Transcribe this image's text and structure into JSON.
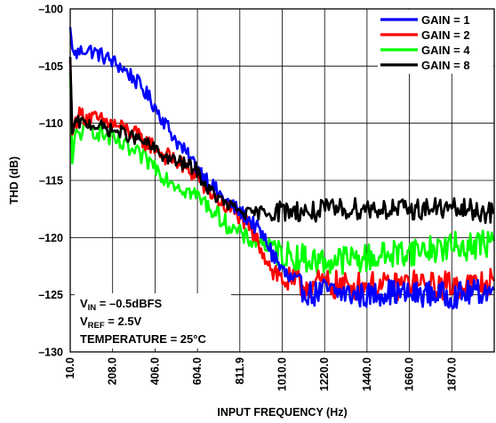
{
  "chart_data": {
    "type": "line",
    "title": "",
    "xlabel": "INPUT FREQUENCY (Hz)",
    "ylabel": "THD (dB)",
    "xlim": [
      10.0,
      2000
    ],
    "ylim": [
      -130,
      -100
    ],
    "x_ticks": [
      "10.0",
      "208.0",
      "406.0",
      "604.0",
      "811.9",
      "1010.0",
      "1220.0",
      "1440.0",
      "1660.0",
      "1870.0"
    ],
    "y_ticks": [
      "–100",
      "–105",
      "–110",
      "–115",
      "–120",
      "–125",
      "–130"
    ],
    "grid": true,
    "legend_position": "top-right",
    "annotations": [
      "V",
      "IN",
      " = –0.5dBFS",
      "V",
      "REF",
      " = 2.5V",
      "TEMPERATURE = 25°C"
    ],
    "x": [
      10,
      20,
      30,
      40,
      60,
      80,
      100,
      150,
      200,
      250,
      300,
      350,
      400,
      450,
      500,
      550,
      600,
      650,
      700,
      750,
      800,
      850,
      900,
      950,
      1000,
      1050,
      1100,
      1150,
      1200,
      1300,
      1400,
      1500,
      1600,
      1700,
      1800,
      1900,
      2000
    ],
    "series": [
      {
        "name": "GAIN = 1",
        "color": "#0000ff",
        "values": [
          -101.6,
          -103.5,
          -104.0,
          -103.9,
          -103.7,
          -103.5,
          -103.6,
          -104.0,
          -104.5,
          -105.1,
          -105.9,
          -107.0,
          -108.3,
          -109.8,
          -111.3,
          -112.6,
          -113.7,
          -114.8,
          -116.0,
          -116.9,
          -117.7,
          -118.4,
          -119.5,
          -121.0,
          -122.8,
          -123.9,
          -124.5,
          -125.0,
          -124.6,
          -124.9,
          -125.1,
          -124.7,
          -125.0,
          -124.9,
          -125.1,
          -124.8,
          -124.6
        ]
      },
      {
        "name": "GAIN = 2",
        "color": "#ff0000",
        "values": [
          -104.5,
          -111.0,
          -110.2,
          -109.6,
          -109.2,
          -109.4,
          -109.5,
          -109.8,
          -110.0,
          -110.4,
          -110.8,
          -111.5,
          -112.0,
          -112.8,
          -113.2,
          -114.0,
          -114.5,
          -115.8,
          -116.6,
          -117.5,
          -118.0,
          -119.2,
          -120.7,
          -122.5,
          -123.6,
          -124.0,
          -124.2,
          -124.1,
          -124.0,
          -124.3,
          -124.2,
          -124.4,
          -124.0,
          -124.3,
          -124.1,
          -124.2,
          -123.8
        ]
      },
      {
        "name": "GAIN = 4",
        "color": "#00ff00",
        "values": [
          -105.5,
          -113.5,
          -111.4,
          -111.0,
          -110.8,
          -110.5,
          -110.5,
          -110.8,
          -111.4,
          -111.9,
          -112.5,
          -113.0,
          -113.6,
          -114.6,
          -115.2,
          -115.8,
          -116.3,
          -117.1,
          -118.0,
          -118.9,
          -119.6,
          -120.2,
          -120.3,
          -121.0,
          -121.4,
          -121.6,
          -121.8,
          -122.0,
          -122.1,
          -121.9,
          -121.8,
          -121.5,
          -121.2,
          -121.0,
          -120.8,
          -120.7,
          -120.3
        ]
      },
      {
        "name": "GAIN = 8",
        "color": "#000000",
        "values": [
          -104.2,
          -110.9,
          -110.1,
          -110.0,
          -109.9,
          -110.1,
          -110.0,
          -110.3,
          -110.6,
          -110.8,
          -111.2,
          -111.6,
          -112.2,
          -112.9,
          -113.3,
          -113.6,
          -114.0,
          -115.6,
          -116.5,
          -117.2,
          -117.6,
          -118.0,
          -117.8,
          -117.7,
          -117.7,
          -117.6,
          -117.7,
          -117.8,
          -117.6,
          -117.5,
          -117.4,
          -117.5,
          -117.6,
          -117.4,
          -117.5,
          -117.6,
          -117.9
        ]
      }
    ]
  }
}
